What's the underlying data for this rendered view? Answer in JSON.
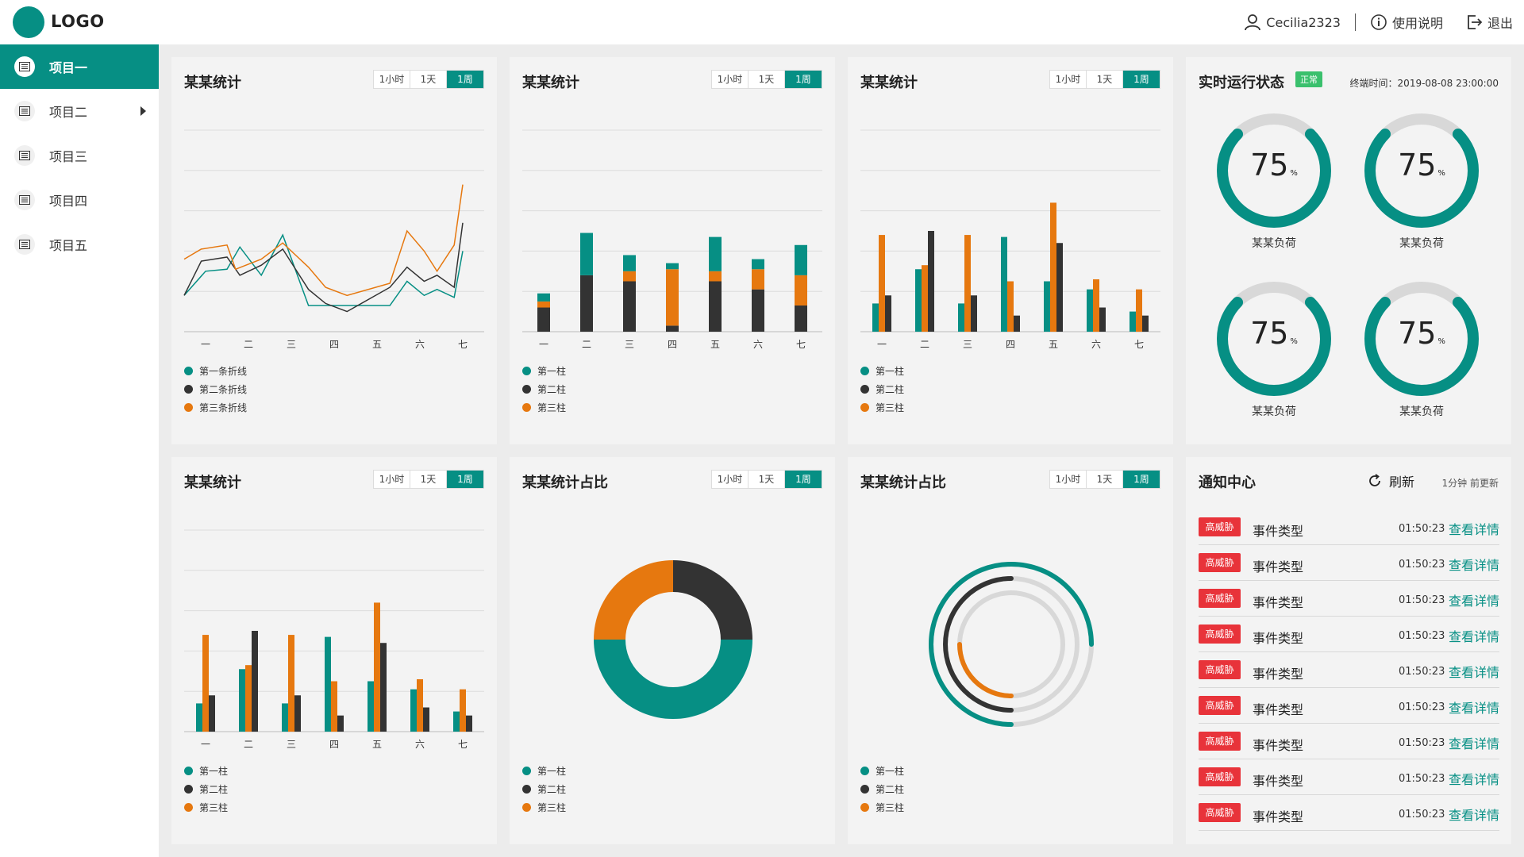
{
  "header": {
    "logo": "LOGO",
    "username": "Cecilia2323",
    "help_label": "使用说明",
    "logout_label": "退出"
  },
  "sidebar": {
    "items": [
      {
        "label": "项目一",
        "active": true
      },
      {
        "label": "项目二",
        "has_arrow": true
      },
      {
        "label": "项目三"
      },
      {
        "label": "项目四"
      },
      {
        "label": "项目五"
      }
    ]
  },
  "colors": {
    "teal": "#068f84",
    "dark": "#333333",
    "orange": "#e6780f",
    "light_gray": "#d8d8d8"
  },
  "time_range_options": [
    "1小时",
    "1天",
    "1周"
  ],
  "selected_range": "1周",
  "panels": {
    "line": {
      "title": "某某统计"
    },
    "stack": {
      "title": "某某统计"
    },
    "group1": {
      "title": "某某统计"
    },
    "group2": {
      "title": "某某统计"
    },
    "donut": {
      "title": "某某统计占比"
    },
    "rings": {
      "title": "某某统计占比"
    },
    "status": {
      "title": "实时运行状态",
      "badge": "正常",
      "terminal_time": "终端时间：2019-08-08 23:00:00",
      "gauges": [
        {
          "value": "75",
          "unit": "%",
          "label": "某某负荷",
          "fraction": 0.75
        },
        {
          "value": "75",
          "unit": "%",
          "label": "某某负荷",
          "fraction": 0.75
        },
        {
          "value": "75",
          "unit": "%",
          "label": "某某负荷",
          "fraction": 0.75
        },
        {
          "value": "75",
          "unit": "%",
          "label": "某某负荷",
          "fraction": 0.75
        }
      ]
    },
    "notifications": {
      "title": "通知中心",
      "refresh_label": "刷新",
      "updated_label": "1分钟 前更新",
      "rows": [
        {
          "badge": "高威胁",
          "type": "事件类型",
          "time": "01:50:23",
          "link": "查看详情"
        },
        {
          "badge": "高威胁",
          "type": "事件类型",
          "time": "01:50:23",
          "link": "查看详情"
        },
        {
          "badge": "高威胁",
          "type": "事件类型",
          "time": "01:50:23",
          "link": "查看详情"
        },
        {
          "badge": "高威胁",
          "type": "事件类型",
          "time": "01:50:23",
          "link": "查看详情"
        },
        {
          "badge": "高威胁",
          "type": "事件类型",
          "time": "01:50:23",
          "link": "查看详情"
        },
        {
          "badge": "高威胁",
          "type": "事件类型",
          "time": "01:50:23",
          "link": "查看详情"
        },
        {
          "badge": "高威胁",
          "type": "事件类型",
          "time": "01:50:23",
          "link": "查看详情"
        },
        {
          "badge": "高威胁",
          "type": "事件类型",
          "time": "01:50:23",
          "link": "查看详情"
        },
        {
          "badge": "高威胁",
          "type": "事件类型",
          "time": "01:50:23",
          "link": "查看详情"
        }
      ]
    }
  },
  "chart_data": [
    {
      "id": "line",
      "type": "line",
      "title": "某某统计",
      "categories": [
        "一",
        "二",
        "三",
        "四",
        "五",
        "六",
        "七"
      ],
      "ylim": [
        0,
        100
      ],
      "grid": true,
      "legend": "bottom-left",
      "series": [
        {
          "name": "第一条折线",
          "color": "#068f84",
          "x": [
            0,
            0.5,
            1,
            1.3,
            1.8,
            2.3,
            2.9,
            3.5,
            4.2,
            4.8,
            5.2,
            5.6,
            5.9,
            6.3,
            6.5
          ],
          "y": [
            18,
            30,
            31,
            42,
            28,
            48,
            13,
            13,
            13,
            13,
            25,
            18,
            21,
            17,
            40
          ]
        },
        {
          "name": "第二条折线",
          "color": "#333333",
          "x": [
            0,
            0.4,
            1,
            1.3,
            1.8,
            2.3,
            2.9,
            3.3,
            3.8,
            4.8,
            5.2,
            5.6,
            5.9,
            6.3,
            6.5
          ],
          "y": [
            18,
            35,
            37,
            28,
            33,
            41,
            21,
            14,
            10,
            22,
            32,
            25,
            28,
            22,
            54
          ]
        },
        {
          "name": "第三条折线",
          "color": "#e6780f",
          "x": [
            0,
            0.4,
            1,
            1.2,
            1.8,
            2.3,
            2.9,
            3.3,
            3.8,
            4.8,
            5.2,
            5.6,
            5.9,
            6.3,
            6.5
          ],
          "y": [
            36,
            41,
            43,
            31,
            36,
            44,
            32,
            22,
            18,
            24,
            50,
            40,
            30,
            43,
            73
          ]
        }
      ]
    },
    {
      "id": "stack",
      "type": "bar",
      "stacked": true,
      "title": "某某统计",
      "categories": [
        "一",
        "二",
        "三",
        "四",
        "五",
        "六",
        "七"
      ],
      "ylim": [
        0,
        100
      ],
      "grid": true,
      "legend": "bottom-left",
      "series": [
        {
          "name": "第一柱",
          "color": "#068f84",
          "values": [
            4,
            21,
            8,
            3,
            17,
            5,
            15
          ]
        },
        {
          "name": "第二柱",
          "color": "#333333",
          "values": [
            12,
            28,
            25,
            3,
            25,
            21,
            13
          ]
        },
        {
          "name": "第三柱",
          "color": "#e6780f",
          "values": [
            3,
            0,
            5,
            28,
            5,
            10,
            15
          ]
        }
      ]
    },
    {
      "id": "group1",
      "type": "bar",
      "title": "某某统计",
      "categories": [
        "一",
        "二",
        "三",
        "四",
        "五",
        "六",
        "七"
      ],
      "ylim": [
        0,
        100
      ],
      "grid": true,
      "legend": "bottom-left",
      "series": [
        {
          "name": "第一柱",
          "color": "#068f84",
          "values": [
            14,
            31,
            14,
            47,
            25,
            21,
            10
          ]
        },
        {
          "name": "第二柱",
          "color": "#333333",
          "values": [
            18,
            50,
            18,
            8,
            44,
            12,
            8
          ]
        },
        {
          "name": "第三柱",
          "color": "#e6780f",
          "values": [
            48,
            33,
            48,
            25,
            64,
            26,
            21
          ]
        }
      ]
    },
    {
      "id": "group2",
      "type": "bar",
      "title": "某某统计",
      "categories": [
        "一",
        "二",
        "三",
        "四",
        "五",
        "六",
        "七"
      ],
      "ylim": [
        0,
        100
      ],
      "grid": true,
      "legend": "bottom-left",
      "series": [
        {
          "name": "第一柱",
          "color": "#068f84",
          "values": [
            14,
            31,
            14,
            47,
            25,
            21,
            10
          ]
        },
        {
          "name": "第二柱",
          "color": "#333333",
          "values": [
            18,
            50,
            18,
            8,
            44,
            12,
            8
          ]
        },
        {
          "name": "第三柱",
          "color": "#e6780f",
          "values": [
            48,
            33,
            48,
            25,
            64,
            26,
            21
          ]
        }
      ]
    },
    {
      "id": "donut",
      "type": "pie",
      "donut": true,
      "title": "某某统计占比",
      "legend": "bottom-left",
      "series": [
        {
          "name": "第一柱",
          "color": "#068f84",
          "value": 50
        },
        {
          "name": "第二柱",
          "color": "#333333",
          "value": 25
        },
        {
          "name": "第三柱",
          "color": "#e6780f",
          "value": 25
        }
      ]
    },
    {
      "id": "rings",
      "type": "pie",
      "radial": true,
      "title": "某某统计占比",
      "legend": "bottom-left",
      "series": [
        {
          "name": "第一柱",
          "color": "#068f84",
          "fraction": 0.75
        },
        {
          "name": "第二柱",
          "color": "#333333",
          "fraction": 0.5
        },
        {
          "name": "第三柱",
          "color": "#e6780f",
          "fraction": 0.25
        }
      ]
    }
  ]
}
